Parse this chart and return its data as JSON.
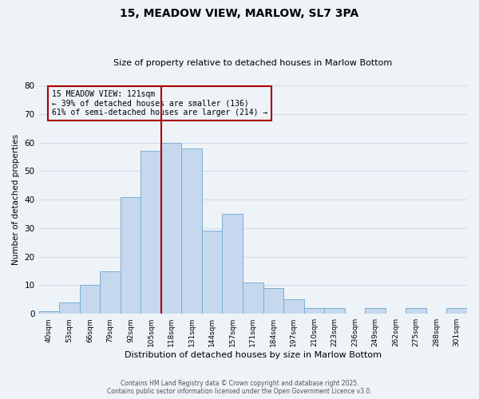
{
  "title": "15, MEADOW VIEW, MARLOW, SL7 3PA",
  "subtitle": "Size of property relative to detached houses in Marlow Bottom",
  "xlabel": "Distribution of detached houses by size in Marlow Bottom",
  "ylabel": "Number of detached properties",
  "bin_labels": [
    "40sqm",
    "53sqm",
    "66sqm",
    "79sqm",
    "92sqm",
    "105sqm",
    "118sqm",
    "131sqm",
    "144sqm",
    "157sqm",
    "171sqm",
    "184sqm",
    "197sqm",
    "210sqm",
    "223sqm",
    "236sqm",
    "249sqm",
    "262sqm",
    "275sqm",
    "288sqm",
    "301sqm"
  ],
  "bar_heights": [
    1,
    4,
    10,
    15,
    41,
    57,
    60,
    58,
    29,
    35,
    11,
    9,
    5,
    2,
    2,
    0,
    2,
    0,
    2,
    0,
    2
  ],
  "bar_color": "#c5d8ed",
  "bar_edge_color": "#7bafd4",
  "grid_color": "#d0dce8",
  "background_color": "#eef3f8",
  "vline_x": 5.5,
  "vline_color": "#aa0000",
  "annotation_title": "15 MEADOW VIEW: 121sqm",
  "annotation_line1": "← 39% of detached houses are smaller (136)",
  "annotation_line2": "61% of semi-detached houses are larger (214) →",
  "annotation_box_color": "#aa0000",
  "footer_line1": "Contains HM Land Registry data © Crown copyright and database right 2025.",
  "footer_line2": "Contains public sector information licensed under the Open Government Licence v3.0.",
  "ylim": [
    0,
    80
  ],
  "yticks": [
    0,
    10,
    20,
    30,
    40,
    50,
    60,
    70,
    80
  ]
}
